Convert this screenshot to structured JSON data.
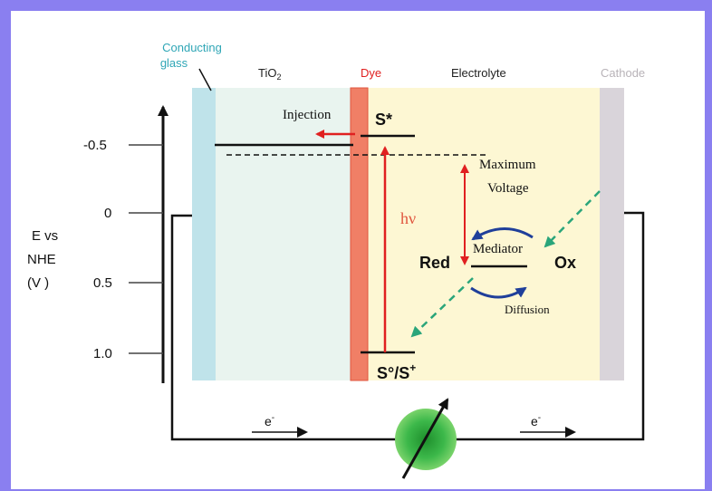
{
  "labels": {
    "conducting_glass_line1": "Conducting",
    "conducting_glass_line2": "glass",
    "tio2_base": "TiO",
    "tio2_sub": "2",
    "dye": "Dye",
    "electrolyte": "Electrolyte",
    "cathode": "Cathode",
    "injection": "Injection",
    "s_star": "S*",
    "ground_state_base": "S°/S",
    "ground_state_sup": "+",
    "hv": "hν",
    "maximum": "Maximum",
    "voltage": "Voltage",
    "mediator": "Mediator",
    "red": "Red",
    "ox": "Ox",
    "diffusion": "Diffusion",
    "electron_base": "e",
    "electron_sup": "-"
  },
  "axis": {
    "title_line1": "E vs",
    "title_line2": "NHE",
    "title_line3": "(V )",
    "ticks": [
      "-0.5",
      "0",
      "0.5",
      "1.0"
    ]
  },
  "colors": {
    "border": "#8a7ff0",
    "conducting_glass": "#bfe3ea",
    "tio2": "#e9f4ef",
    "dye": "#f07f66",
    "electrolyte": "#fdf7d3",
    "cathode": "#d9d4da",
    "red_arrow": "#e02020",
    "mediator_arrow": "#1f3f9a",
    "dashed_green": "#2aa57a",
    "load": "#3cb84a"
  }
}
